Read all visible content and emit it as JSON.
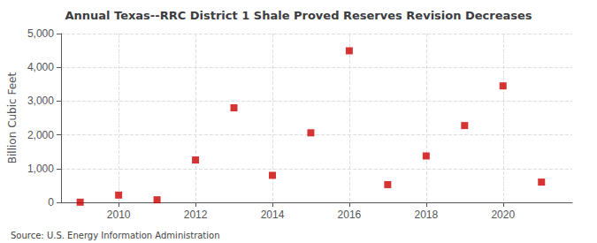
{
  "chart_data": {
    "type": "scatter",
    "title": "Annual Texas--RRC District 1 Shale Proved Reserves Revision Decreases",
    "ylabel": "Billion Cubic Feet",
    "annotations": [
      "Source: U.S. Energy Information Administration"
    ],
    "x": [
      2009,
      2010,
      2011,
      2012,
      2013,
      2014,
      2015,
      2016,
      2017,
      2018,
      2019,
      2020,
      2021
    ],
    "values": [
      5,
      215,
      75,
      1255,
      2800,
      800,
      2060,
      4490,
      525,
      1375,
      2275,
      3450,
      600
    ],
    "color": "#cc0000",
    "marker": "square",
    "grid": true,
    "xlim": [
      2008.5,
      2021.8
    ],
    "xticks": [
      2010,
      2012,
      2014,
      2016,
      2018,
      2020
    ],
    "ylim": [
      0,
      5000
    ],
    "yticks": [
      0,
      {
        "value": 1000,
        "label": "1,000"
      },
      {
        "value": 2000,
        "label": "2,000"
      },
      {
        "value": 3000,
        "label": "3,000"
      },
      {
        "value": 4000,
        "label": "4,000"
      },
      {
        "value": 5000,
        "label": "5,000"
      }
    ]
  }
}
